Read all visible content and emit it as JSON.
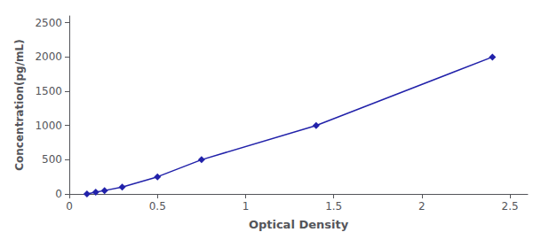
{
  "chart_data": {
    "type": "line",
    "x_label": "Optical Density",
    "y_label": "Concentration(pg/mL)",
    "x": [
      0.1,
      0.15,
      0.2,
      0.3,
      0.5,
      0.75,
      1.4,
      2.4
    ],
    "values": [
      0,
      25,
      50,
      100,
      250,
      500,
      1000,
      2000
    ],
    "color": "#2222AA",
    "marker": "diamond",
    "xlim": [
      0,
      2.6
    ],
    "ylim": [
      0,
      2600
    ],
    "xticks": [
      0,
      0.5,
      1,
      1.5,
      2,
      2.5
    ],
    "yticks": [
      0,
      500,
      1000,
      1500,
      2000,
      2500
    ],
    "grid": false
  }
}
